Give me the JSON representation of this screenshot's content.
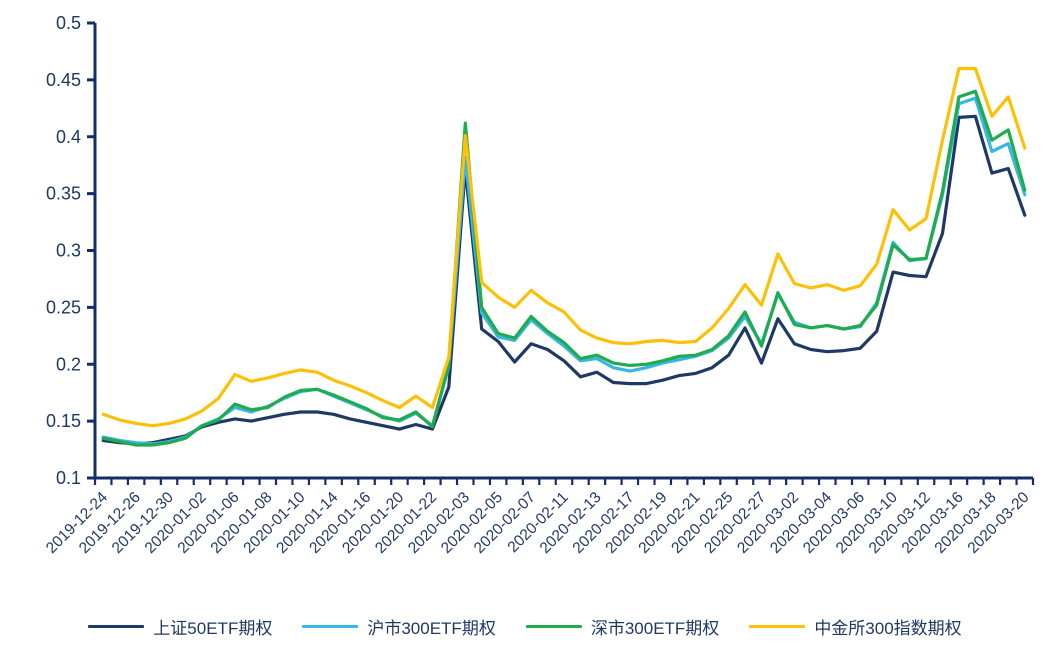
{
  "chart_data": {
    "type": "line",
    "title": "",
    "xlabel": "",
    "ylabel": "",
    "ylim": [
      0.1,
      0.5
    ],
    "grid": false,
    "legend_position": "bottom-center",
    "axis_color": "#122e66",
    "text_color": "#1f3864",
    "y_tick_labels": [
      "0.5",
      "0.45",
      "0.4",
      "0.35",
      "0.3",
      "0.25",
      "0.2",
      "0.15",
      "0.1"
    ],
    "y_tick_values": [
      0.5,
      0.45,
      0.4,
      0.35,
      0.3,
      0.25,
      0.2,
      0.15,
      0.1
    ],
    "n_points": 57,
    "x_label_every": 2,
    "x_labels": [
      "2019-12-24",
      "2019-12-26",
      "2019-12-30",
      "2020-01-02",
      "2020-01-06",
      "2020-01-08",
      "2020-01-10",
      "2020-01-14",
      "2020-01-16",
      "2020-01-20",
      "2020-01-22",
      "2020-02-03",
      "2020-02-05",
      "2020-02-07",
      "2020-02-11",
      "2020-02-13",
      "2020-02-17",
      "2020-02-19",
      "2020-02-21",
      "2020-02-25",
      "2020-02-27",
      "2020-03-02",
      "2020-03-04",
      "2020-03-06",
      "2020-03-10",
      "2020-03-12",
      "2020-03-16",
      "2020-03-18",
      "2020-03-20"
    ],
    "series": [
      {
        "name": "上证50ETF期权",
        "color": "#1f3864",
        "values": [
          0.133,
          0.131,
          0.13,
          0.131,
          0.134,
          0.137,
          0.145,
          0.149,
          0.152,
          0.15,
          0.153,
          0.156,
          0.158,
          0.158,
          0.156,
          0.152,
          0.149,
          0.146,
          0.143,
          0.147,
          0.143,
          0.18,
          0.372,
          0.231,
          0.22,
          0.202,
          0.218,
          0.213,
          0.203,
          0.189,
          0.193,
          0.184,
          0.183,
          0.183,
          0.186,
          0.19,
          0.192,
          0.197,
          0.208,
          0.232,
          0.201,
          0.24,
          0.218,
          0.213,
          0.211,
          0.212,
          0.214,
          0.229,
          0.281,
          0.278,
          0.277,
          0.315,
          0.417,
          0.418,
          0.368,
          0.372,
          0.331
        ]
      },
      {
        "name": "沪市300ETF期权",
        "color": "#38b6e8",
        "values": [
          0.136,
          0.133,
          0.131,
          0.13,
          0.132,
          0.136,
          0.146,
          0.152,
          0.162,
          0.158,
          0.163,
          0.17,
          0.176,
          0.178,
          0.172,
          0.166,
          0.16,
          0.154,
          0.15,
          0.157,
          0.146,
          0.198,
          0.382,
          0.245,
          0.224,
          0.221,
          0.239,
          0.227,
          0.216,
          0.203,
          0.205,
          0.197,
          0.194,
          0.197,
          0.201,
          0.204,
          0.207,
          0.212,
          0.223,
          0.242,
          0.218,
          0.262,
          0.237,
          0.232,
          0.234,
          0.231,
          0.233,
          0.254,
          0.307,
          0.291,
          0.293,
          0.349,
          0.429,
          0.434,
          0.387,
          0.394,
          0.349
        ]
      },
      {
        "name": "深市300ETF期权",
        "color": "#1fab4e",
        "values": [
          0.135,
          0.132,
          0.129,
          0.129,
          0.131,
          0.135,
          0.146,
          0.151,
          0.165,
          0.16,
          0.162,
          0.171,
          0.177,
          0.178,
          0.173,
          0.167,
          0.161,
          0.153,
          0.151,
          0.158,
          0.145,
          0.2,
          0.412,
          0.25,
          0.227,
          0.223,
          0.242,
          0.229,
          0.219,
          0.205,
          0.208,
          0.201,
          0.199,
          0.2,
          0.203,
          0.207,
          0.208,
          0.213,
          0.225,
          0.246,
          0.216,
          0.263,
          0.235,
          0.232,
          0.234,
          0.231,
          0.234,
          0.252,
          0.305,
          0.292,
          0.293,
          0.352,
          0.435,
          0.44,
          0.397,
          0.406,
          0.353
        ]
      },
      {
        "name": "中金所300指数期权",
        "color": "#fdc006",
        "values": [
          0.156,
          0.151,
          0.148,
          0.146,
          0.148,
          0.152,
          0.159,
          0.17,
          0.191,
          0.185,
          0.188,
          0.192,
          0.195,
          0.193,
          0.186,
          0.181,
          0.175,
          0.168,
          0.162,
          0.172,
          0.162,
          0.206,
          0.401,
          0.272,
          0.259,
          0.25,
          0.265,
          0.254,
          0.246,
          0.23,
          0.223,
          0.219,
          0.218,
          0.22,
          0.221,
          0.219,
          0.22,
          0.232,
          0.249,
          0.27,
          0.252,
          0.297,
          0.271,
          0.267,
          0.27,
          0.265,
          0.269,
          0.288,
          0.336,
          0.318,
          0.328,
          0.397,
          0.46,
          0.46,
          0.418,
          0.435,
          0.39
        ]
      }
    ]
  },
  "legend": {
    "items": [
      {
        "label": "上证50ETF期权",
        "color": "#1f3864"
      },
      {
        "label": "沪市300ETF期权",
        "color": "#38b6e8"
      },
      {
        "label": "深市300ETF期权",
        "color": "#1fab4e"
      },
      {
        "label": "中金所300指数期权",
        "color": "#fdc006"
      }
    ]
  }
}
